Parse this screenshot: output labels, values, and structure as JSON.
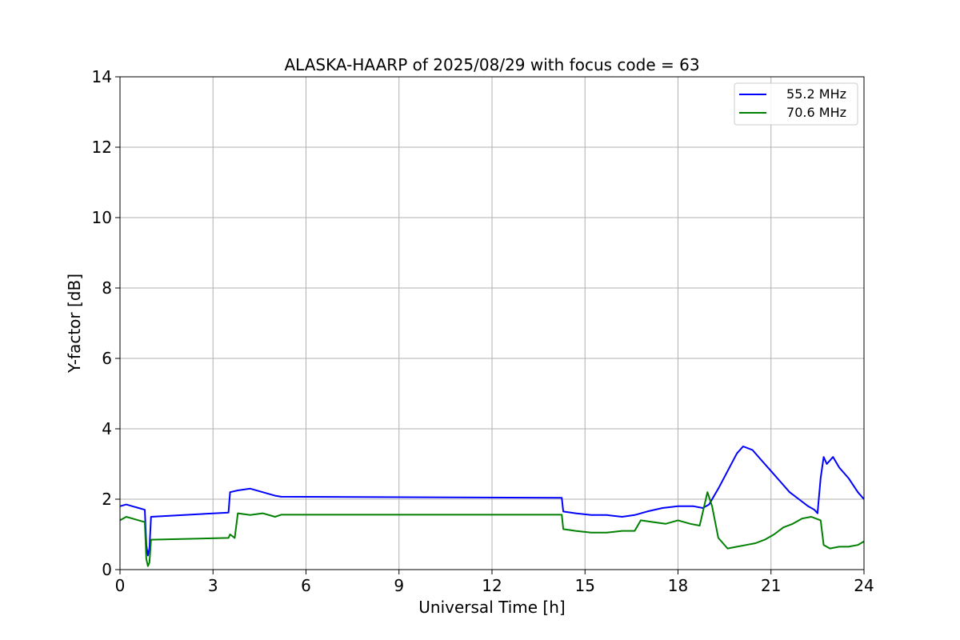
{
  "chart_data": {
    "type": "line",
    "title": "ALASKA-HAARP of 2025/08/29 with focus code = 63",
    "xlabel": "Universal Time [h]",
    "ylabel": "Y-factor [dB]",
    "xlim": [
      0,
      24
    ],
    "ylim": [
      0,
      14
    ],
    "xticks": [
      0,
      3,
      6,
      9,
      12,
      15,
      18,
      21,
      24
    ],
    "yticks": [
      0,
      2,
      4,
      6,
      8,
      10,
      12,
      14
    ],
    "grid": true,
    "legend_position": "top-right",
    "series": [
      {
        "name": "55.2 MHz",
        "color": "#0000ff",
        "x": [
          0,
          0.2,
          0.4,
          0.6,
          0.8,
          0.85,
          0.9,
          0.95,
          1.0,
          3.5,
          3.55,
          3.8,
          4.2,
          4.6,
          5.0,
          5.2,
          14.25,
          14.3,
          14.7,
          15.2,
          15.7,
          16.2,
          16.6,
          17.0,
          17.5,
          18.0,
          18.5,
          18.8,
          19.0,
          19.3,
          19.6,
          19.9,
          20.1,
          20.4,
          20.7,
          21.0,
          21.3,
          21.6,
          21.9,
          22.2,
          22.4,
          22.5,
          22.6,
          22.7,
          22.8,
          23.0,
          23.2,
          23.5,
          23.8,
          24.0
        ],
        "y": [
          1.8,
          1.85,
          1.8,
          1.75,
          1.7,
          0.7,
          0.4,
          0.6,
          1.5,
          1.62,
          2.2,
          2.25,
          2.3,
          2.2,
          2.1,
          2.07,
          2.04,
          1.65,
          1.6,
          1.55,
          1.55,
          1.5,
          1.55,
          1.65,
          1.75,
          1.8,
          1.8,
          1.75,
          1.85,
          2.3,
          2.8,
          3.3,
          3.5,
          3.4,
          3.1,
          2.8,
          2.5,
          2.2,
          2.0,
          1.8,
          1.7,
          1.6,
          2.6,
          3.2,
          3.0,
          3.2,
          2.9,
          2.6,
          2.2,
          2.0
        ]
      },
      {
        "name": "70.6 MHz",
        "color": "#008000",
        "x": [
          0,
          0.2,
          0.4,
          0.6,
          0.8,
          0.85,
          0.9,
          0.95,
          1.0,
          3.5,
          3.55,
          3.7,
          3.8,
          4.2,
          4.6,
          5.0,
          5.2,
          14.25,
          14.3,
          14.7,
          15.2,
          15.7,
          16.2,
          16.6,
          16.8,
          17.2,
          17.6,
          18.0,
          18.4,
          18.7,
          18.95,
          19.1,
          19.3,
          19.6,
          19.9,
          20.2,
          20.5,
          20.8,
          21.1,
          21.4,
          21.7,
          22.0,
          22.3,
          22.6,
          22.7,
          22.9,
          23.2,
          23.5,
          23.8,
          24.0
        ],
        "y": [
          1.4,
          1.5,
          1.45,
          1.4,
          1.35,
          0.3,
          0.1,
          0.2,
          0.85,
          0.9,
          1.0,
          0.9,
          1.6,
          1.55,
          1.6,
          1.5,
          1.56,
          1.56,
          1.15,
          1.1,
          1.05,
          1.05,
          1.1,
          1.1,
          1.4,
          1.35,
          1.3,
          1.4,
          1.3,
          1.25,
          2.2,
          1.8,
          0.9,
          0.6,
          0.65,
          0.7,
          0.75,
          0.85,
          1.0,
          1.2,
          1.3,
          1.45,
          1.5,
          1.4,
          0.7,
          0.6,
          0.65,
          0.65,
          0.7,
          0.8
        ]
      }
    ]
  }
}
